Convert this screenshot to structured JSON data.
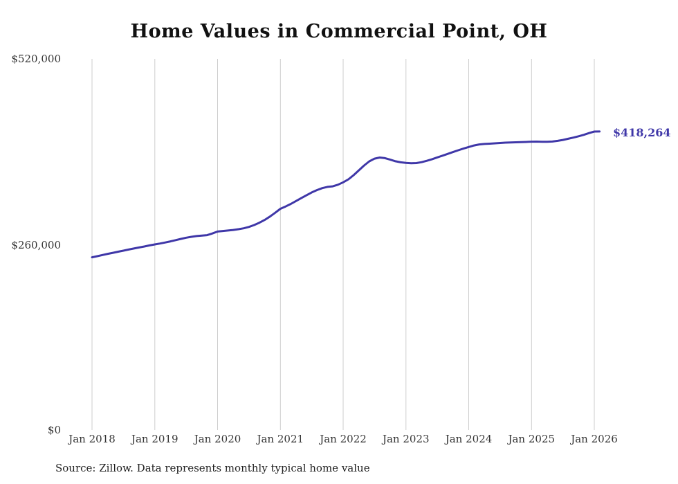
{
  "page": {
    "title": "Home Values in Commercial Point, OH",
    "source_note": "Source: Zillow. Data represents monthly typical home value"
  },
  "chart_data": {
    "type": "line",
    "title": "Home Values in Commercial Point, OH",
    "xlabel": "",
    "ylabel": "",
    "ylim": [
      0,
      520000
    ],
    "grid": "vertical-only",
    "legend": "none",
    "line_color": "#3f37a8",
    "gridline_color": "#cccccc",
    "end_label": "$418,264",
    "end_value": 418264,
    "start_month": "2018-01",
    "x_tick_labels": [
      "Jan 2018",
      "Jan 2019",
      "Jan 2020",
      "Jan 2021",
      "Jan 2022",
      "Jan 2023",
      "Jan 2024",
      "Jan 2025",
      "Jan 2026"
    ],
    "y_ticks": [
      {
        "label": "$0",
        "value": 0
      },
      {
        "label": "$260,000",
        "value": 260000
      },
      {
        "label": "$520,000",
        "value": 520000
      }
    ],
    "values": [
      242000,
      243500,
      245200,
      246800,
      248300,
      249800,
      251300,
      252800,
      254300,
      255700,
      257100,
      258600,
      260000,
      261300,
      262700,
      264300,
      266000,
      267800,
      269400,
      270700,
      271700,
      272400,
      273000,
      275300,
      278000,
      278800,
      279500,
      280300,
      281300,
      282600,
      284500,
      287200,
      290500,
      294300,
      299000,
      304300,
      310000,
      313200,
      316800,
      320800,
      324900,
      329000,
      332900,
      336200,
      338900,
      340600,
      341400,
      343600,
      347000,
      351200,
      357000,
      363800,
      370600,
      376400,
      380200,
      381800,
      380900,
      378700,
      376500,
      375100,
      374300,
      373800,
      374000,
      375300,
      377200,
      379400,
      381900,
      384400,
      386900,
      389400,
      391900,
      394300,
      396500,
      398600,
      400100,
      400800,
      401200,
      401600,
      402100,
      402600,
      402900,
      403100,
      403300,
      403600,
      404000,
      404100,
      403900,
      403800,
      404200,
      405100,
      406400,
      408000,
      409700,
      411500,
      413600,
      416000,
      418100,
      418264
    ]
  }
}
